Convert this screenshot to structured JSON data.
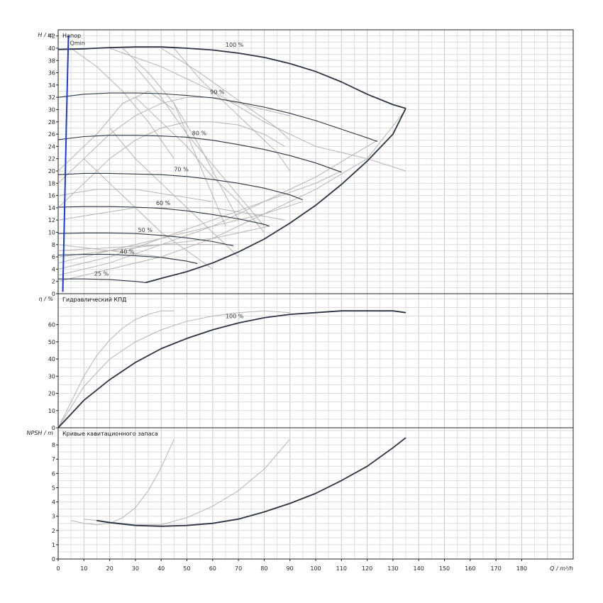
{
  "chart_data": [
    {
      "type": "line",
      "title": "Напор",
      "ylabel": "H / m",
      "xlim": [
        0,
        200
      ],
      "ylim": [
        0,
        43
      ],
      "yticks": [
        0,
        2,
        4,
        6,
        8,
        10,
        12,
        14,
        16,
        18,
        20,
        22,
        24,
        26,
        28,
        30,
        32,
        34,
        36,
        38,
        40,
        42
      ],
      "xgrid_step": 5,
      "ygrid_step": 1,
      "grid": true,
      "series": [
        {
          "name": "100 %",
          "label_at": [
            65,
            40.0
          ],
          "x": [
            0,
            10,
            20,
            30,
            40,
            50,
            60,
            70,
            80,
            90,
            100,
            110,
            120,
            130,
            135
          ],
          "y": [
            39.8,
            39.9,
            40.1,
            40.2,
            40.2,
            40.0,
            39.7,
            39.2,
            38.5,
            37.5,
            36.2,
            34.5,
            32.5,
            30.8,
            30.2
          ]
        },
        {
          "name": "90 %",
          "label_at": [
            59,
            32.3
          ],
          "x": [
            0,
            10,
            20,
            30,
            40,
            50,
            60,
            70,
            80,
            90,
            100,
            110,
            120,
            124
          ],
          "y": [
            32.0,
            32.5,
            32.7,
            32.7,
            32.6,
            32.3,
            31.9,
            31.2,
            30.4,
            29.4,
            28.2,
            26.8,
            25.4,
            24.8
          ]
        },
        {
          "name": "80 %",
          "label_at": [
            52,
            25.6
          ],
          "x": [
            0,
            10,
            20,
            30,
            40,
            50,
            60,
            70,
            80,
            90,
            100,
            110
          ],
          "y": [
            25.1,
            25.6,
            25.8,
            25.8,
            25.7,
            25.5,
            25.0,
            24.3,
            23.5,
            22.5,
            21.3,
            19.8
          ]
        },
        {
          "name": "70 %",
          "label_at": [
            45,
            19.7
          ],
          "x": [
            0,
            10,
            20,
            30,
            40,
            50,
            60,
            70,
            80,
            90,
            95
          ],
          "y": [
            19.4,
            19.6,
            19.6,
            19.5,
            19.4,
            19.1,
            18.6,
            18.0,
            17.2,
            16.1,
            15.3
          ]
        },
        {
          "name": "60 %",
          "label_at": [
            38,
            14.2
          ],
          "x": [
            0,
            10,
            20,
            30,
            40,
            50,
            60,
            70,
            80,
            82
          ],
          "y": [
            14.1,
            14.2,
            14.2,
            14.1,
            13.9,
            13.5,
            12.9,
            12.2,
            11.3,
            11.0
          ]
        },
        {
          "name": "50 %",
          "label_at": [
            31,
            9.8
          ],
          "x": [
            0,
            10,
            20,
            30,
            40,
            50,
            60,
            68
          ],
          "y": [
            9.8,
            9.9,
            9.9,
            9.8,
            9.5,
            9.1,
            8.5,
            7.8
          ]
        },
        {
          "name": "40 %",
          "label_at": [
            24,
            6.3
          ],
          "x": [
            0,
            10,
            20,
            30,
            40,
            50,
            54
          ],
          "y": [
            6.3,
            6.4,
            6.4,
            6.2,
            5.9,
            5.3,
            4.9
          ]
        },
        {
          "name": "25 %",
          "label_at": [
            14,
            2.7
          ],
          "x": [
            0,
            10,
            20,
            30,
            34
          ],
          "y": [
            2.4,
            2.4,
            2.3,
            2.0,
            1.8
          ]
        },
        {
          "name": "",
          "role": "max-envelope",
          "x": [
            34,
            40,
            50,
            60,
            70,
            80,
            90,
            100,
            110,
            120,
            130,
            135
          ],
          "y": [
            1.8,
            2.5,
            3.6,
            5.0,
            6.8,
            8.9,
            11.5,
            14.4,
            17.8,
            21.6,
            26.0,
            30.2
          ]
        }
      ],
      "grey_curves": [
        {
          "x": [
            0,
            15,
            25,
            35,
            45
          ],
          "y": [
            20,
            26,
            31,
            33,
            30
          ]
        },
        {
          "x": [
            0,
            10,
            20,
            30,
            40,
            50,
            60,
            70,
            80,
            90
          ],
          "y": [
            18,
            22,
            26,
            29,
            31,
            32,
            32,
            31,
            30,
            29
          ]
        },
        {
          "x": [
            0,
            10,
            20,
            30,
            40,
            50,
            60,
            70,
            80,
            88
          ],
          "y": [
            14,
            18,
            22,
            25,
            27,
            28,
            28,
            27.5,
            26,
            24
          ]
        },
        {
          "x": [
            5,
            15,
            25,
            35,
            45
          ],
          "y": [
            40,
            37,
            33,
            28,
            22
          ]
        },
        {
          "x": [
            20,
            40,
            60,
            80,
            100,
            120,
            135
          ],
          "y": [
            40,
            37,
            33,
            28,
            24,
            22,
            20
          ]
        },
        {
          "x": [
            40,
            55,
            65,
            75,
            85,
            90
          ],
          "y": [
            40,
            36,
            33,
            30,
            27,
            25
          ]
        },
        {
          "x": [
            25,
            35,
            45,
            55,
            65,
            70
          ],
          "y": [
            40,
            36,
            31,
            24,
            16,
            12
          ]
        },
        {
          "x": [
            30,
            40,
            50,
            60,
            70,
            80
          ],
          "y": [
            37,
            32,
            26,
            21,
            16,
            11
          ]
        },
        {
          "x": [
            45,
            50,
            55,
            60,
            65
          ],
          "y": [
            31,
            26,
            21,
            16,
            11
          ]
        },
        {
          "x": [
            0,
            20,
            40,
            60,
            80,
            100,
            120,
            135
          ],
          "y": [
            2,
            4,
            6,
            9,
            13,
            17,
            22,
            30
          ]
        },
        {
          "x": [
            0,
            20,
            40,
            60,
            80,
            100,
            124
          ],
          "y": [
            3,
            5,
            8,
            11,
            15,
            19,
            25
          ]
        },
        {
          "x": [
            0,
            20,
            40,
            60,
            80,
            100,
            110
          ],
          "y": [
            4,
            6,
            9,
            12,
            15,
            18,
            20
          ]
        },
        {
          "x": [
            0,
            20,
            40,
            60,
            80,
            95
          ],
          "y": [
            5,
            7,
            9,
            11,
            13,
            15
          ]
        },
        {
          "x": [
            0,
            20,
            40,
            60,
            82
          ],
          "y": [
            6,
            7,
            8,
            9,
            11
          ]
        },
        {
          "x": [
            0,
            20,
            40,
            60,
            68
          ],
          "y": [
            7,
            7.5,
            8,
            8,
            8
          ]
        },
        {
          "x": [
            0,
            20,
            40,
            54
          ],
          "y": [
            8,
            7,
            6,
            5
          ]
        },
        {
          "x": [
            10,
            20,
            30,
            40,
            50,
            60
          ],
          "y": [
            22,
            18,
            14,
            10,
            7,
            4
          ]
        },
        {
          "x": [
            20,
            30,
            40,
            50,
            60,
            70
          ],
          "y": [
            27,
            22,
            18,
            14,
            10,
            6
          ]
        },
        {
          "x": [
            30,
            40,
            50,
            60,
            70,
            80
          ],
          "y": [
            32,
            28,
            24,
            19,
            15,
            10
          ]
        },
        {
          "x": [
            45,
            55,
            65,
            75,
            85,
            90
          ],
          "y": [
            40,
            35,
            31,
            27,
            23,
            20
          ]
        },
        {
          "x": [
            0,
            15,
            30,
            45,
            60,
            75,
            88
          ],
          "y": [
            12,
            13,
            14,
            14,
            14,
            13,
            12
          ]
        },
        {
          "x": [
            0,
            15,
            30,
            45,
            60
          ],
          "y": [
            16,
            17,
            17,
            16,
            15
          ]
        }
      ],
      "qmin": {
        "label": "Qmin",
        "x": [
          1.8,
          2.5,
          3.2,
          4.0
        ],
        "y": [
          0.3,
          14,
          28,
          42
        ]
      }
    },
    {
      "type": "line",
      "title": "Гидравлический КПД",
      "ylabel": "η / %",
      "xlim": [
        0,
        200
      ],
      "ylim": [
        0,
        78
      ],
      "yticks": [
        0,
        10,
        20,
        30,
        40,
        50,
        60
      ],
      "xgrid_step": 5,
      "ygrid_step": 5,
      "grid": true,
      "series": [
        {
          "name": "100 %",
          "label_at": [
            65,
            63
          ],
          "x": [
            0,
            5,
            10,
            20,
            30,
            40,
            50,
            60,
            70,
            80,
            90,
            100,
            110,
            120,
            130,
            135
          ],
          "y": [
            0,
            8,
            16,
            28,
            38,
            46,
            52,
            57,
            61,
            64,
            66,
            67,
            68,
            68,
            68,
            67
          ]
        }
      ],
      "grey_curves": [
        {
          "x": [
            0,
            5,
            10,
            15,
            20,
            25,
            30,
            35,
            40,
            45
          ],
          "y": [
            0,
            15,
            30,
            42,
            51,
            58,
            63,
            66,
            68,
            68
          ]
        },
        {
          "x": [
            0,
            10,
            20,
            30,
            40,
            50,
            60,
            70,
            80,
            90
          ],
          "y": [
            0,
            24,
            40,
            50,
            57,
            62,
            65,
            67,
            68,
            67
          ]
        }
      ]
    },
    {
      "type": "line",
      "title": "Кривые кавитационного запаса",
      "ylabel": "NPSH / m",
      "xlabel": "Q / m³/h",
      "xlim": [
        0,
        200
      ],
      "ylim": [
        0,
        9.2
      ],
      "yticks": [
        0,
        1,
        2,
        3,
        4,
        5,
        6,
        7,
        8
      ],
      "xticks": [
        0,
        10,
        20,
        30,
        40,
        50,
        60,
        70,
        80,
        90,
        100,
        110,
        120,
        130,
        140,
        150,
        160,
        170,
        180
      ],
      "xgrid_step": 5,
      "ygrid_step": 0.5,
      "grid": true,
      "series": [
        {
          "name": "",
          "x": [
            15,
            20,
            30,
            40,
            50,
            60,
            70,
            80,
            90,
            100,
            110,
            120,
            130,
            135
          ],
          "y": [
            2.7,
            2.55,
            2.35,
            2.3,
            2.35,
            2.5,
            2.8,
            3.3,
            3.9,
            4.6,
            5.5,
            6.5,
            7.8,
            8.5
          ]
        }
      ],
      "grey_curves": [
        {
          "x": [
            5,
            10,
            15,
            20,
            25,
            30,
            35,
            40,
            45
          ],
          "y": [
            2.7,
            2.5,
            2.4,
            2.5,
            2.9,
            3.6,
            4.8,
            6.4,
            8.4
          ]
        },
        {
          "x": [
            10,
            20,
            30,
            40,
            50,
            60,
            70,
            80,
            90
          ],
          "y": [
            2.8,
            2.6,
            2.4,
            2.4,
            2.9,
            3.7,
            4.8,
            6.3,
            8.4
          ]
        }
      ]
    }
  ]
}
